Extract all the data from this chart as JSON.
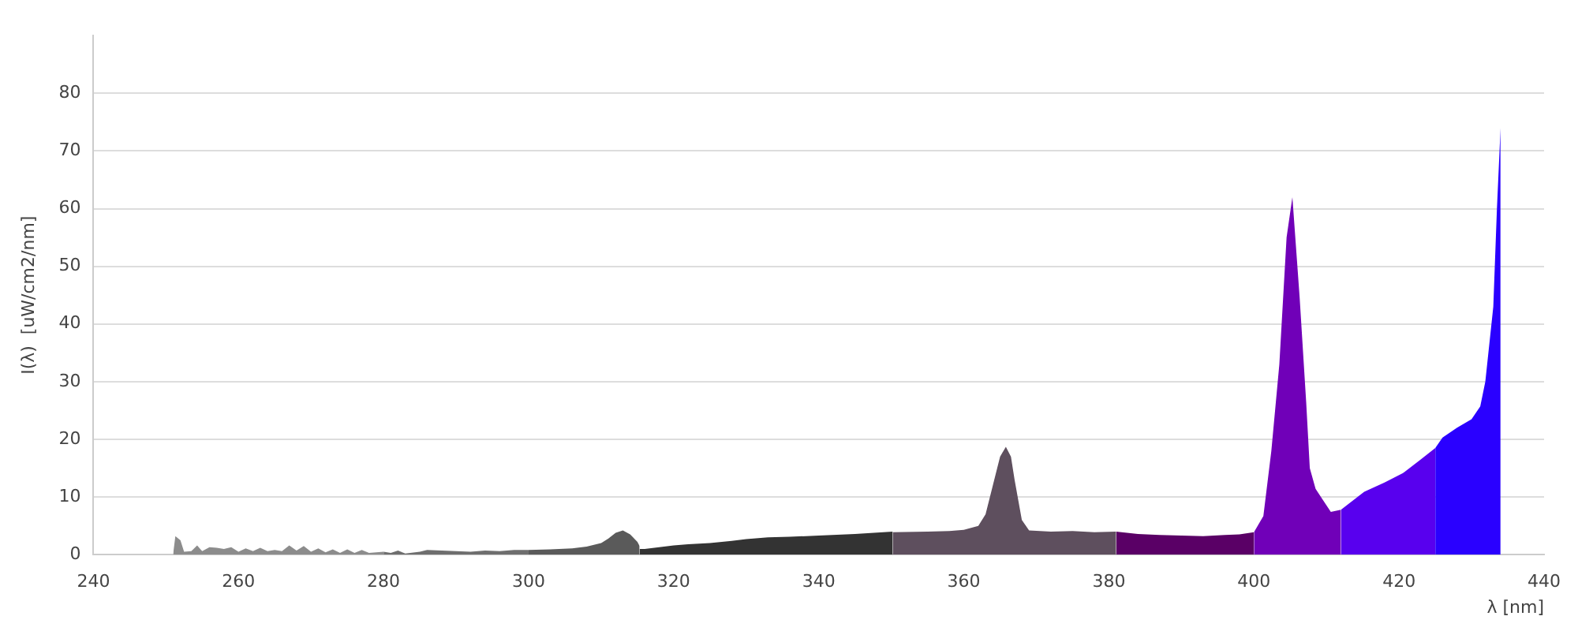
{
  "chart_data": {
    "type": "area",
    "xlabel": "λ [nm]",
    "ylabel": "I(λ)  [uW/cm2/nm]",
    "xlim": [
      240,
      440
    ],
    "xticks": [
      240,
      260,
      280,
      300,
      320,
      340,
      360,
      380,
      400,
      420,
      440
    ],
    "ylim": [
      0,
      90
    ],
    "yticks": [
      0,
      10,
      20,
      30,
      40,
      50,
      60,
      70,
      80
    ],
    "grid": "y",
    "legend": false,
    "series": [
      {
        "color": "#8c8c8c",
        "x": [
          251,
          251.3,
          252,
          252.5,
          253.5,
          254.3,
          255,
          256,
          257,
          258,
          259,
          260,
          261,
          262,
          263,
          264,
          265,
          266,
          267,
          268,
          269,
          270,
          271,
          272,
          273,
          274,
          275,
          276,
          277,
          278,
          280
        ],
        "values": [
          0.2,
          3.2,
          2.5,
          0.5,
          0.6,
          1.6,
          0.6,
          1.3,
          1.2,
          1.0,
          1.3,
          0.5,
          1.1,
          0.6,
          1.2,
          0.6,
          0.8,
          0.6,
          1.6,
          0.7,
          1.5,
          0.5,
          1.1,
          0.4,
          0.9,
          0.3,
          0.9,
          0.3,
          0.8,
          0.3,
          0.5
        ]
      },
      {
        "color": "#6e6e6e",
        "x": [
          280,
          281,
          282,
          283,
          285,
          286,
          288,
          290,
          292,
          294,
          296,
          298,
          300
        ],
        "values": [
          0.5,
          0.3,
          0.7,
          0.2,
          0.5,
          0.8,
          0.7,
          0.6,
          0.5,
          0.7,
          0.6,
          0.8,
          0.8
        ]
      },
      {
        "color": "#5a5a5a",
        "x": [
          300,
          303,
          306,
          308,
          310,
          311,
          312,
          313,
          314,
          315,
          315.3
        ],
        "values": [
          0.8,
          0.9,
          1.1,
          1.4,
          2.0,
          2.8,
          3.8,
          4.2,
          3.5,
          2.2,
          1.5
        ]
      },
      {
        "color": "#333333",
        "x": [
          315.3,
          316,
          318,
          320,
          322,
          325,
          328,
          330,
          333,
          336,
          340,
          345,
          350.2
        ],
        "values": [
          1.0,
          1.0,
          1.3,
          1.6,
          1.8,
          2.0,
          2.4,
          2.7,
          3.0,
          3.1,
          3.3,
          3.6,
          4.0
        ]
      },
      {
        "color": "#5e4f5e",
        "x": [
          350.2,
          355,
          358,
          360,
          362,
          363,
          364,
          365,
          365.8,
          366.5,
          367,
          368,
          369,
          372,
          375,
          378,
          381
        ],
        "values": [
          3.9,
          4.0,
          4.1,
          4.3,
          5.0,
          7.0,
          12.0,
          17.0,
          18.7,
          17.0,
          13.0,
          6.0,
          4.2,
          4.0,
          4.1,
          3.9,
          4.0
        ]
      },
      {
        "color": "#5a0066",
        "x": [
          381,
          384,
          387,
          390,
          393,
          396,
          398,
          400
        ],
        "values": [
          4.0,
          3.6,
          3.4,
          3.3,
          3.2,
          3.4,
          3.5,
          3.9
        ]
      },
      {
        "color": "#7000b8",
        "x": [
          400,
          401.3,
          402.4,
          403.5,
          404.5,
          405.3,
          406.3,
          407.2,
          407.7,
          408.5,
          409.5,
          410.6,
          412
        ],
        "values": [
          3.9,
          6.7,
          18,
          33,
          55,
          62,
          44.6,
          26.5,
          15,
          11.4,
          9.5,
          7.4,
          7.8
        ]
      },
      {
        "color": "#5800ee",
        "x": [
          412,
          415.2,
          418,
          420.5,
          423,
          425
        ],
        "values": [
          7.8,
          10.9,
          12.5,
          14.1,
          16.5,
          18.5
        ]
      },
      {
        "color": "#2a00ff",
        "x": [
          425,
          426,
          428,
          430,
          431.2,
          431.9,
          433,
          433.5,
          434
        ],
        "values": [
          18.5,
          20.3,
          22,
          23.5,
          25.7,
          30,
          43,
          60,
          74
        ]
      }
    ]
  }
}
